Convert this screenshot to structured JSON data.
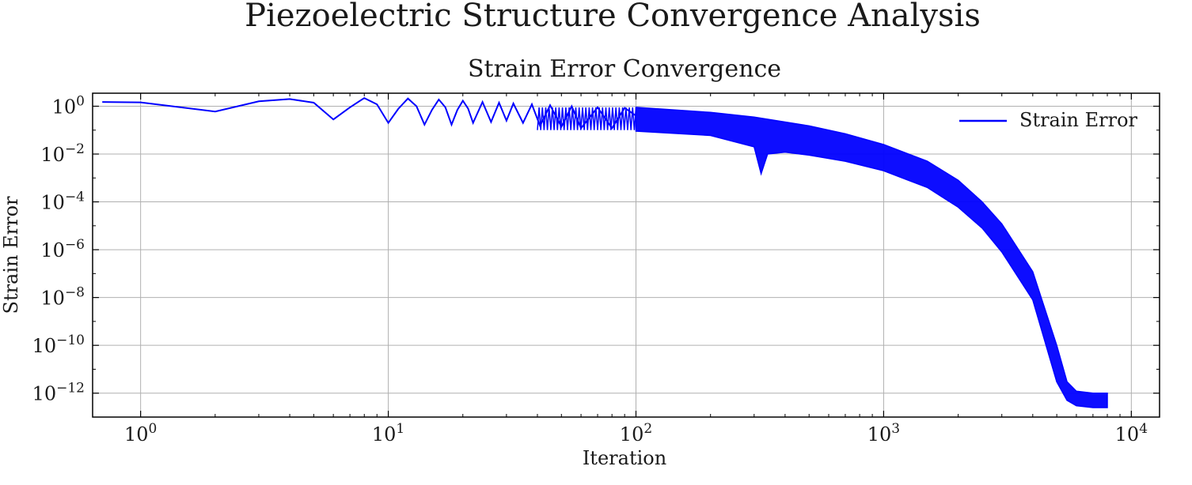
{
  "figure": {
    "title": "Piezoelectric Structure Convergence Analysis"
  },
  "chart_data": {
    "type": "line",
    "title": "Strain Error Convergence",
    "xlabel": "Iteration",
    "ylabel": "Strain Error",
    "xscale": "log",
    "yscale": "log",
    "xlim": [
      0.64,
      13000
    ],
    "ylim": [
      1e-13,
      3.5
    ],
    "grid": true,
    "legend": {
      "position": "top-right",
      "entries": [
        "Strain Error"
      ]
    },
    "x_ticks": [
      {
        "value": 1,
        "base": "10",
        "exp": "0"
      },
      {
        "value": 10,
        "base": "10",
        "exp": "1"
      },
      {
        "value": 100,
        "base": "10",
        "exp": "2"
      },
      {
        "value": 1000,
        "base": "10",
        "exp": "3"
      },
      {
        "value": 10000,
        "base": "10",
        "exp": "4"
      }
    ],
    "y_ticks": [
      {
        "value": 1,
        "base": "10",
        "exp": "0"
      },
      {
        "value": 0.01,
        "base": "10",
        "exp": "−2"
      },
      {
        "value": 0.0001,
        "base": "10",
        "exp": "−4"
      },
      {
        "value": 1e-06,
        "base": "10",
        "exp": "−6"
      },
      {
        "value": 1e-08,
        "base": "10",
        "exp": "−8"
      },
      {
        "value": 1e-10,
        "base": "10",
        "exp": "−10"
      },
      {
        "value": 1e-12,
        "base": "10",
        "exp": "−12"
      }
    ],
    "series": [
      {
        "name": "Strain Error",
        "color": "#0000ff",
        "x": [
          0,
          1,
          2,
          3,
          4,
          5,
          6,
          7,
          8,
          9,
          10,
          11,
          12,
          13,
          14,
          15,
          16,
          17,
          18,
          19,
          20,
          21,
          22,
          24,
          26,
          28,
          30,
          32,
          35,
          38,
          41,
          45,
          50,
          55,
          60,
          70,
          80,
          90,
          100,
          120,
          150,
          200,
          250,
          300,
          320,
          340,
          400,
          500,
          700,
          1000,
          1500,
          2000,
          3000,
          4000,
          5000,
          5500,
          6000,
          7000,
          8000
        ],
        "y": [
          1.5,
          1.45,
          0.6,
          1.6,
          2.0,
          1.4,
          0.28,
          0.9,
          2.2,
          1.2,
          0.2,
          0.8,
          2.1,
          1.0,
          0.17,
          0.7,
          1.9,
          0.9,
          0.17,
          0.7,
          1.7,
          0.8,
          0.2,
          1.5,
          0.22,
          1.4,
          0.25,
          1.3,
          0.2,
          1.2,
          0.15,
          1.1,
          0.14,
          1.0,
          0.12,
          0.9,
          0.12,
          0.85,
          0.4,
          0.35,
          0.3,
          0.2,
          0.12,
          0.04,
          0.0015,
          0.03,
          0.02,
          0.008,
          0.003,
          0.0007,
          1e-05,
          2e-07,
          3e-09,
          5e-11,
          2e-12,
          6e-13,
          5e-13,
          4e-13,
          4e-13
        ],
        "envelope_from_x": 100,
        "upper": [
          [
            100,
            0.9
          ],
          [
            200,
            0.55
          ],
          [
            300,
            0.35
          ],
          [
            500,
            0.15
          ],
          [
            700,
            0.07
          ],
          [
            1000,
            0.025
          ],
          [
            1500,
            0.005
          ],
          [
            2000,
            0.0008
          ],
          [
            2500,
            0.0001
          ],
          [
            3000,
            1.2e-05
          ],
          [
            4000,
            1.2e-07
          ],
          [
            5000,
            1e-10
          ],
          [
            5500,
            3e-12
          ],
          [
            6000,
            1.2e-12
          ],
          [
            7000,
            1e-12
          ],
          [
            8000,
            1e-12
          ]
        ],
        "lower": [
          [
            100,
            0.09
          ],
          [
            200,
            0.06
          ],
          [
            300,
            0.02
          ],
          [
            320,
            0.0015
          ],
          [
            340,
            0.01
          ],
          [
            400,
            0.012
          ],
          [
            500,
            0.009
          ],
          [
            700,
            0.005
          ],
          [
            1000,
            0.002
          ],
          [
            1500,
            0.0004
          ],
          [
            2000,
            6e-05
          ],
          [
            2500,
            8e-06
          ],
          [
            3000,
            8e-07
          ],
          [
            4000,
            8e-09
          ],
          [
            5000,
            3e-12
          ],
          [
            5500,
            5e-13
          ],
          [
            6000,
            3e-13
          ],
          [
            7000,
            2.5e-13
          ],
          [
            8000,
            2.5e-13
          ]
        ]
      }
    ]
  }
}
